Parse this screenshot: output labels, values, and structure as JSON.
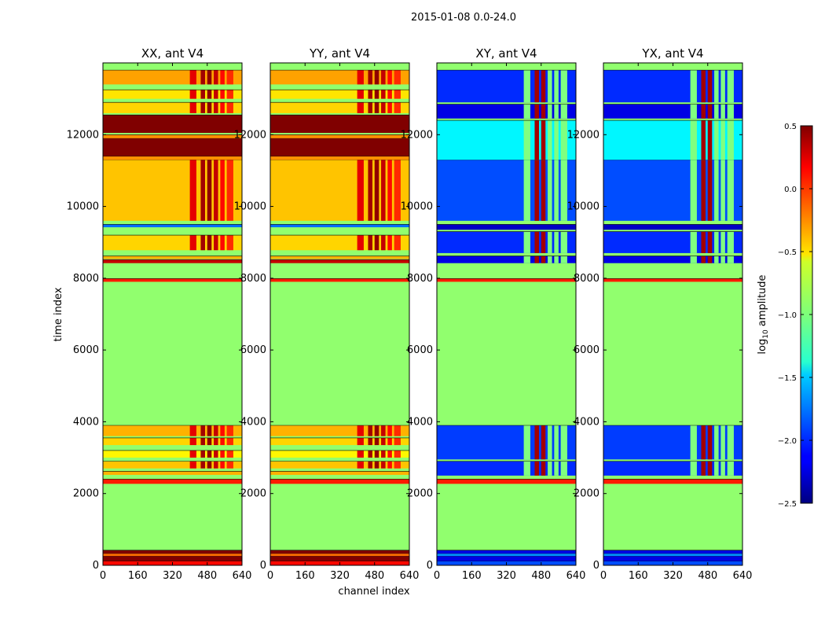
{
  "chart_data": {
    "type": "heatmap",
    "suptitle": "2015-01-08 0.0-24.0",
    "xlabel": "channel index",
    "ylabel": "time index",
    "xlim": [
      0,
      640
    ],
    "ylim": [
      0,
      14000
    ],
    "x_ticks": [
      0,
      160,
      320,
      480,
      640
    ],
    "y_ticks": [
      0,
      2000,
      4000,
      6000,
      8000,
      10000,
      12000
    ],
    "panels": [
      {
        "title": "XX, ant V4",
        "kind": "auto"
      },
      {
        "title": "YY, ant V4",
        "kind": "auto"
      },
      {
        "title": "XY, ant V4",
        "kind": "cross"
      },
      {
        "title": "YX, ant V4",
        "kind": "cross"
      }
    ],
    "colorbar": {
      "label": "log10 amplitude",
      "vmin": -2.5,
      "vmax": 0.5,
      "ticks": [
        0.5,
        0.0,
        -0.5,
        -1.0,
        -1.5,
        -2.0,
        -2.5
      ],
      "tick_labels": [
        "0.5",
        "0.0",
        "−0.5",
        "−1.0",
        "−1.5",
        "−2.0",
        "−2.5"
      ],
      "colormap": "jet"
    },
    "background_value": -0.95,
    "auto_bands": [
      {
        "t0": 0,
        "t1": 120,
        "v": 0.1
      },
      {
        "t0": 120,
        "t1": 260,
        "v": 0.5
      },
      {
        "t0": 260,
        "t1": 330,
        "v": -0.2
      },
      {
        "t0": 330,
        "t1": 420,
        "v": 0.5
      },
      {
        "t0": 2270,
        "t1": 2400,
        "v": 0.05
      },
      {
        "t0": 2520,
        "t1": 2620,
        "v": -0.4
      },
      {
        "t0": 2700,
        "t1": 2900,
        "v": -0.45
      },
      {
        "t0": 3000,
        "t1": 3200,
        "v": -0.6
      },
      {
        "t0": 3350,
        "t1": 3550,
        "v": -0.5
      },
      {
        "t0": 3600,
        "t1": 3900,
        "v": -0.4
      },
      {
        "t0": 7900,
        "t1": 7990,
        "v": 0.05
      },
      {
        "t0": 8420,
        "t1": 8520,
        "v": 0.3
      },
      {
        "t0": 8540,
        "t1": 8620,
        "v": -0.4
      },
      {
        "t0": 8780,
        "t1": 9200,
        "v": -0.5
      },
      {
        "t0": 9420,
        "t1": 9500,
        "v": -1.8
      },
      {
        "t0": 9600,
        "t1": 11300,
        "v": -0.45
      },
      {
        "t0": 11300,
        "t1": 11400,
        "v": -0.3
      },
      {
        "t0": 11400,
        "t1": 11900,
        "v": 0.5
      },
      {
        "t0": 11900,
        "t1": 12000,
        "v": -0.3
      },
      {
        "t0": 12050,
        "t1": 12550,
        "v": 0.5
      },
      {
        "t0": 12600,
        "t1": 12900,
        "v": -0.5
      },
      {
        "t0": 13000,
        "t1": 13250,
        "v": -0.55
      },
      {
        "t0": 13400,
        "t1": 13800,
        "v": -0.35
      }
    ],
    "cross_bands": [
      {
        "t0": 0,
        "t1": 120,
        "v": -1.9
      },
      {
        "t0": 120,
        "t1": 260,
        "v": -2.2
      },
      {
        "t0": 260,
        "t1": 330,
        "v": -1.7
      },
      {
        "t0": 330,
        "t1": 420,
        "v": -2.2
      },
      {
        "t0": 2270,
        "t1": 2400,
        "v": 0.05
      },
      {
        "t0": 2500,
        "t1": 2900,
        "v": -2.0
      },
      {
        "t0": 2950,
        "t1": 3900,
        "v": -1.95
      },
      {
        "t0": 7900,
        "t1": 7990,
        "v": 0.05
      },
      {
        "t0": 8420,
        "t1": 8620,
        "v": -2.2
      },
      {
        "t0": 8700,
        "t1": 9300,
        "v": -2.0
      },
      {
        "t0": 9350,
        "t1": 9500,
        "v": -2.3
      },
      {
        "t0": 9600,
        "t1": 11300,
        "v": -1.9
      },
      {
        "t0": 11300,
        "t1": 12400,
        "v": -1.4
      },
      {
        "t0": 12450,
        "t1": 12850,
        "v": -2.2
      },
      {
        "t0": 12900,
        "t1": 13800,
        "v": -2.0
      }
    ],
    "rfi_channels": [
      {
        "c0": 400,
        "c1": 430,
        "v": 0.2
      },
      {
        "c0": 450,
        "c1": 470,
        "v": 0.4
      },
      {
        "c0": 480,
        "c1": 500,
        "v": 0.45
      },
      {
        "c0": 510,
        "c1": 530,
        "v": 0.3
      },
      {
        "c0": 540,
        "c1": 560,
        "v": 0.1
      },
      {
        "c0": 570,
        "c1": 600,
        "v": 0.0
      }
    ]
  }
}
